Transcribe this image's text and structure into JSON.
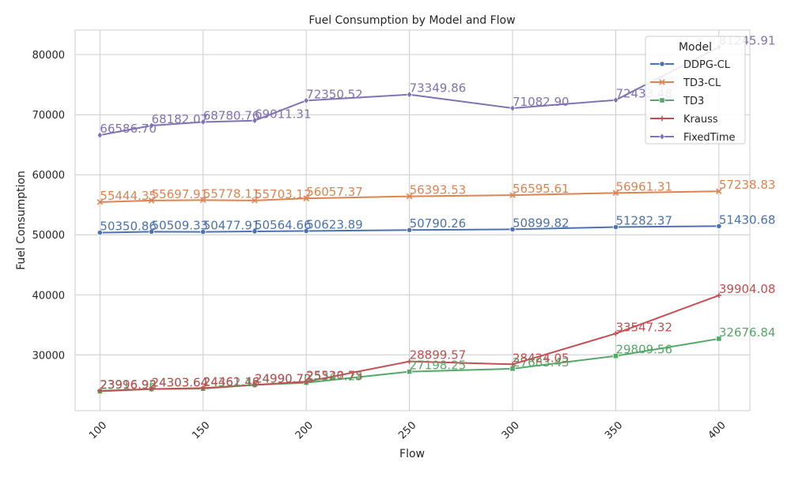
{
  "chart_data": {
    "type": "line",
    "title": "Fuel Consumption by Model and Flow",
    "xlabel": "Flow",
    "ylabel": "Fuel Consumption",
    "x": [
      100,
      125,
      150,
      175,
      200,
      250,
      300,
      350,
      400
    ],
    "xticks": [
      100,
      150,
      200,
      250,
      300,
      350,
      400
    ],
    "yticks": [
      30000,
      40000,
      50000,
      60000,
      70000,
      80000
    ],
    "xlim": [
      88,
      415
    ],
    "ylim": [
      20700,
      84100
    ],
    "grid": true,
    "legend": {
      "title": "Model",
      "placement": "upper right"
    },
    "series": [
      {
        "name": "DDPG-CL",
        "color": "#4c72b0",
        "marker": "circle",
        "values": [
          50350.86,
          50509.33,
          50477.91,
          50564.66,
          50623.89,
          50790.26,
          50899.82,
          51282.37,
          51430.68
        ],
        "labels": [
          "50350.86",
          "50509.33",
          "50477.91",
          "50564.66",
          "50623.89",
          "50790.26",
          "50899.82",
          "51282.37",
          "51430.68"
        ]
      },
      {
        "name": "TD3-CL",
        "color": "#dd8452",
        "marker": "x",
        "values": [
          55444.35,
          55697.91,
          55778.11,
          55703.12,
          56057.37,
          56393.53,
          56595.61,
          56961.31,
          57238.83
        ],
        "labels": [
          "55444.35",
          "55697.91",
          "55778.11",
          "55703.12",
          "56057.37",
          "56393.53",
          "56595.61",
          "56961.31",
          "57238.83"
        ]
      },
      {
        "name": "TD3",
        "color": "#55a868",
        "marker": "square",
        "values": [
          23916.96,
          24303.64,
          24362.18,
          24990.7,
          25347.23,
          27198.25,
          27683.43,
          29809.56,
          32676.84
        ],
        "labels": [
          "23916.96",
          "24303.64",
          "24362.18",
          "24990.70",
          "25347.23",
          "27198.25",
          "27683.43",
          "29809.56",
          "32676.84"
        ]
      },
      {
        "name": "Krauss",
        "color": "#c44e52",
        "marker": "plus",
        "values": [
          23996.92,
          24303.64,
          24461.46,
          24990.72,
          25520.75,
          28899.57,
          28424.05,
          33547.32,
          39904.08
        ],
        "labels": [
          "23996.92",
          "24303.64",
          "24461.46",
          "24990.72",
          "25520.75",
          "28899.57",
          "28424.05",
          "33547.32",
          "39904.08"
        ]
      },
      {
        "name": "FixedTime",
        "color": "#8172b3",
        "marker": "diamond",
        "values": [
          66586.7,
          68182.07,
          68780.76,
          69011.31,
          72350.52,
          73349.86,
          71082.9,
          72433.48,
          81245.91
        ],
        "labels": [
          "66586.70",
          "68182.07",
          "68780.76",
          "69011.31",
          "72350.52",
          "73349.86",
          "71082.90",
          "72433.48",
          "81245.91"
        ]
      }
    ]
  }
}
